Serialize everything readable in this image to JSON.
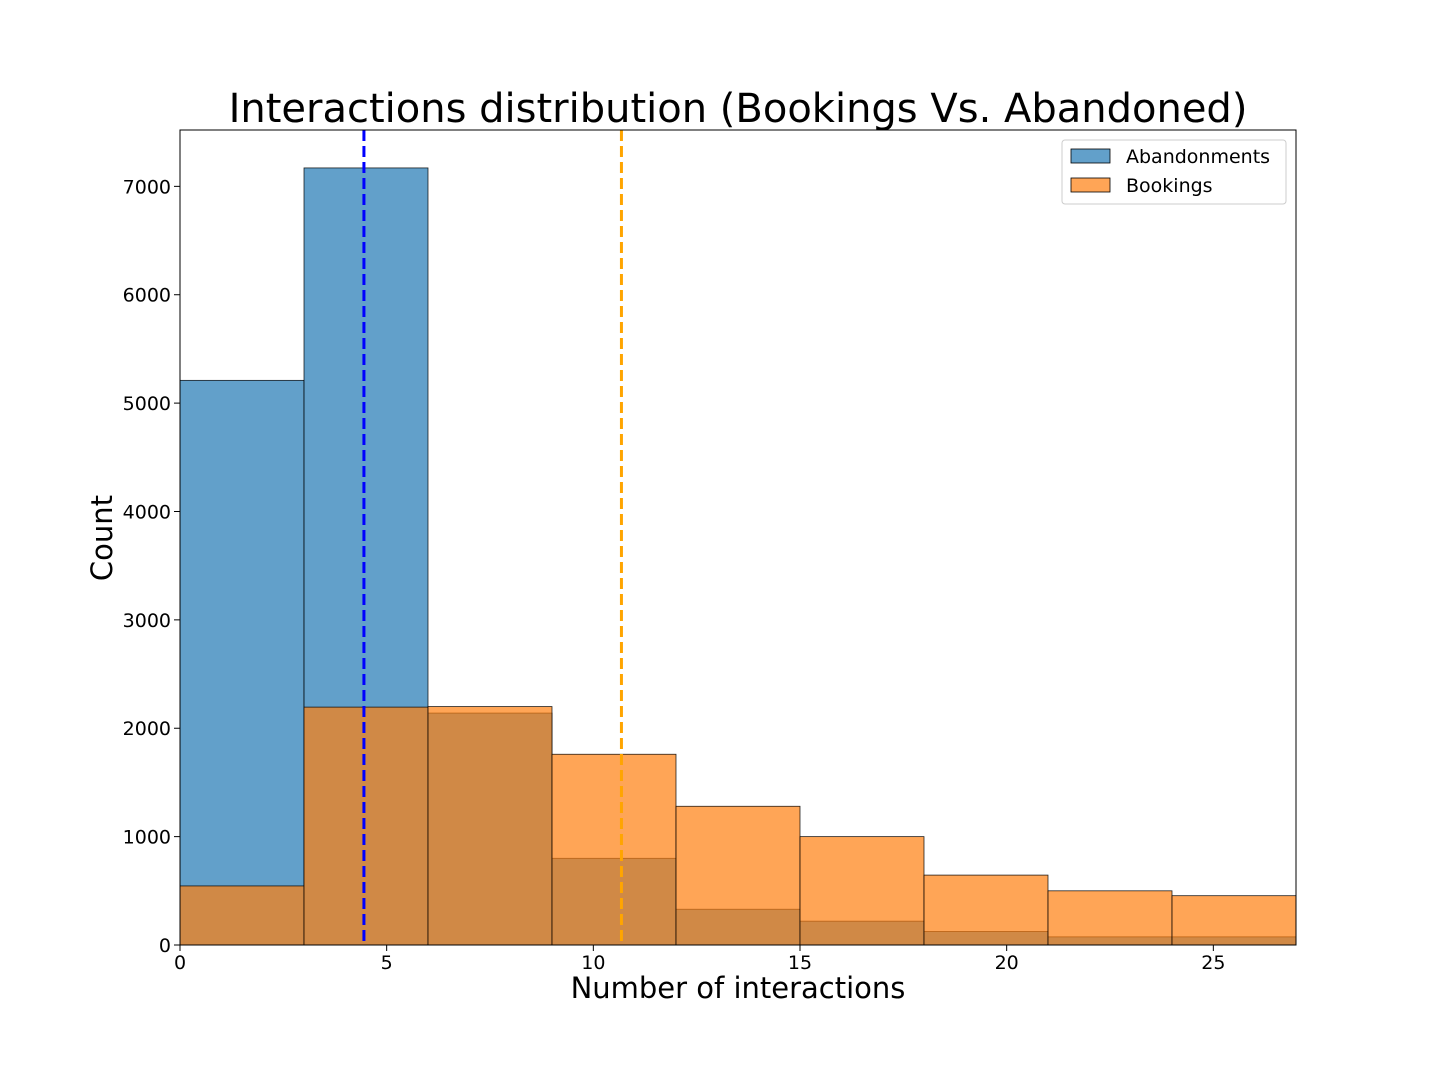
{
  "chart_data": {
    "type": "bar",
    "title": "Interactions distribution (Bookings Vs. Abandoned)",
    "xlabel": "Number of interactions",
    "ylabel": "Count",
    "xlim": [
      0,
      27
    ],
    "ylim": [
      0,
      7520
    ],
    "x_ticks": [
      0,
      5,
      10,
      15,
      20,
      25
    ],
    "y_ticks": [
      0,
      1000,
      2000,
      3000,
      4000,
      5000,
      6000,
      7000
    ],
    "bin_edges": [
      0,
      3,
      6,
      9,
      12,
      15,
      18,
      21,
      24,
      27
    ],
    "series": [
      {
        "name": "Abandonments",
        "color": "#1f77b4",
        "values": [
          5210,
          7170,
          2140,
          800,
          330,
          220,
          125,
          75,
          75
        ]
      },
      {
        "name": "Bookings",
        "color": "#ff7f0e",
        "values": [
          545,
          2195,
          2200,
          1760,
          1280,
          1000,
          645,
          500,
          455
        ]
      }
    ],
    "reference_lines": [
      {
        "x": 4.45,
        "color": "#0000ff",
        "style": "dashed"
      },
      {
        "x": 10.68,
        "color": "#ffa500",
        "style": "dashed"
      }
    ],
    "legend": {
      "placement": "top-right",
      "entries": [
        "Abandonments",
        "Bookings"
      ]
    },
    "grid": false
  }
}
